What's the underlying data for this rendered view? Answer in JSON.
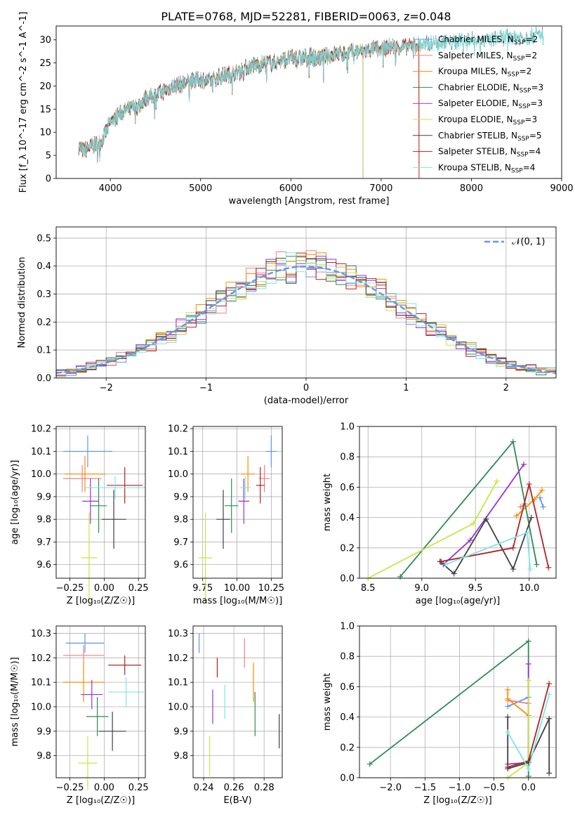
{
  "figure_title": "PLATE=0768, MJD=52281, FIBERID=0063, z=0.048",
  "colors": {
    "Chabrier MILES": "#6495ed",
    "Salpeter MILES": "#f08080",
    "Kroupa MILES": "#ff8c00",
    "Chabrier ELODIE": "#2e8b57",
    "Salpeter ELODIE": "#9932cc",
    "Kroupa ELODIE": "#c8e645",
    "Chabrier STELIB": "#404040",
    "Salpeter STELIB": "#b22222",
    "Kroupa STELIB": "#7fe5e5"
  },
  "chart_data": [
    {
      "type": "line",
      "xlabel": "wavelength [Angstrom, rest frame]",
      "ylabel": "Flux [f_λ 10^-17 erg cm^-2 s^-1 A^-1]",
      "xlim": [
        3400,
        9000
      ],
      "ylim": [
        0,
        33
      ],
      "xticks": [
        4000,
        5000,
        6000,
        7000,
        8000,
        9000
      ],
      "yticks": [
        0,
        5,
        10,
        15,
        20,
        25,
        30
      ],
      "legend_position": "right",
      "legend": [
        {
          "name": "Chabrier MILES",
          "label": "Chabrier MILES, N",
          "sub": "SSP",
          "tail": "=2"
        },
        {
          "name": "Salpeter MILES",
          "label": "Salpeter MILES, N",
          "sub": "SSP",
          "tail": "=2"
        },
        {
          "name": "Kroupa MILES",
          "label": "Kroupa MILES, N",
          "sub": "SSP",
          "tail": "=2"
        },
        {
          "name": "Chabrier ELODIE",
          "label": "Chabrier ELODIE, N",
          "sub": "SSP",
          "tail": "=3"
        },
        {
          "name": "Salpeter ELODIE",
          "label": "Salpeter ELODIE, N",
          "sub": "SSP",
          "tail": "=3"
        },
        {
          "name": "Kroupa ELODIE",
          "label": "Kroupa ELODIE, N",
          "sub": "SSP",
          "tail": "=3"
        },
        {
          "name": "Chabrier STELIB",
          "label": "Chabrier STELIB, N",
          "sub": "SSP",
          "tail": "=5"
        },
        {
          "name": "Salpeter STELIB",
          "label": "Salpeter STELIB, N",
          "sub": "SSP",
          "tail": "=4"
        },
        {
          "name": "Kroupa STELIB",
          "label": "Kroupa STELIB, N",
          "sub": "SSP",
          "tail": "=4"
        }
      ],
      "observed_spectrum": {
        "wavelength": [
          3650,
          3700,
          3800,
          3900,
          4000,
          4100,
          4200,
          4300,
          4400,
          4500,
          4600,
          4700,
          4800,
          4900,
          5000,
          5100,
          5200,
          5300,
          5400,
          5500,
          5600,
          5700,
          5800,
          5900,
          6000,
          6100,
          6200,
          6300,
          6400,
          6500,
          6600,
          6700,
          6800,
          6900,
          7000,
          7100,
          7200,
          7300,
          7400,
          7500,
          7600,
          7700,
          7800,
          7900,
          8000,
          8100,
          8200,
          8300,
          8400,
          8500,
          8600,
          8700,
          8800
        ],
        "flux": [
          7.0,
          6.0,
          7.0,
          8.0,
          12.0,
          14.0,
          15.0,
          15.5,
          17.5,
          18.0,
          19.0,
          20.0,
          20.5,
          21.0,
          21.5,
          21.0,
          22.0,
          22.5,
          23.0,
          24.0,
          24.5,
          25.0,
          25.0,
          25.5,
          26.0,
          26.0,
          26.5,
          26.0,
          26.5,
          27.0,
          27.0,
          27.5,
          27.5,
          28.0,
          28.0,
          28.5,
          28.5,
          28.5,
          29.0,
          29.0,
          29.5,
          29.5,
          29.5,
          30.0,
          30.0,
          30.0,
          30.0,
          30.5,
          30.5,
          30.5,
          30.5,
          31.0,
          31.0
        ]
      },
      "model_cutoffs": [
        {
          "name": "Chabrier MILES",
          "end_wavelength": 7420
        },
        {
          "name": "Salpeter MILES",
          "end_wavelength": 7420
        },
        {
          "name": "Kroupa MILES",
          "end_wavelength": 7420
        },
        {
          "name": "Salpeter STELIB",
          "end_wavelength": 7420
        },
        {
          "name": "Chabrier ELODIE",
          "end_wavelength": 6800
        },
        {
          "name": "Salpeter ELODIE",
          "end_wavelength": 6800
        },
        {
          "name": "Kroupa ELODIE",
          "end_wavelength": 6800
        }
      ]
    },
    {
      "type": "area",
      "xlabel": "(data-model)/error",
      "ylabel": "Normed distribution",
      "xlim": [
        -2.5,
        2.5
      ],
      "ylim": [
        0,
        0.54
      ],
      "xticks": [
        -2,
        -1,
        0,
        1,
        2
      ],
      "yticks": [
        0.0,
        0.1,
        0.2,
        0.3,
        0.4,
        0.5
      ],
      "grid": true,
      "legend_position": "top-right",
      "reference_curve": {
        "label": "𝒩(0, 1)",
        "mean": 0,
        "sigma": 1
      },
      "bin_width": 0.1
    },
    {
      "type": "scatter",
      "xlabel": "Z [log₁₀(Z/Z☉)]",
      "ylabel": "age  [log₁₀(age/yr)]",
      "xlim": [
        -0.35,
        0.3
      ],
      "ylim": [
        9.54,
        10.21
      ],
      "xticks": [
        -0.25,
        0.0,
        0.25
      ],
      "yticks": [
        9.6,
        9.7,
        9.8,
        9.9,
        10.0,
        10.1,
        10.2
      ],
      "grid": true,
      "points": [
        {
          "name": "Chabrier MILES",
          "x": -0.12,
          "y": 10.1,
          "xerr": 0.18,
          "yerr": 0.07
        },
        {
          "name": "Salpeter MILES",
          "x": -0.16,
          "y": 9.98,
          "xerr": 0.14,
          "yerr": 0.06
        },
        {
          "name": "Kroupa MILES",
          "x": -0.14,
          "y": 10.0,
          "xerr": 0.15,
          "yerr": 0.08
        },
        {
          "name": "Chabrier ELODIE",
          "x": -0.04,
          "y": 9.86,
          "xerr": 0.06,
          "yerr": 0.12
        },
        {
          "name": "Salpeter ELODIE",
          "x": -0.1,
          "y": 9.88,
          "xerr": 0.06,
          "yerr": 0.1
        },
        {
          "name": "Kroupa ELODIE",
          "x": -0.11,
          "y": 9.63,
          "xerr": 0.06,
          "yerr": 0.2
        },
        {
          "name": "Chabrier STELIB",
          "x": 0.07,
          "y": 9.8,
          "xerr": 0.09,
          "yerr": 0.13
        },
        {
          "name": "Salpeter STELIB",
          "x": 0.15,
          "y": 9.95,
          "xerr": 0.13,
          "yerr": 0.08
        },
        {
          "name": "Kroupa STELIB",
          "x": 0.08,
          "y": 9.94,
          "xerr": 0.22,
          "yerr": 0.05
        }
      ]
    },
    {
      "type": "scatter",
      "xlabel": "mass [log₁₀(M/M☉)]",
      "ylabel": "",
      "xlim": [
        9.68,
        10.33
      ],
      "ylim": [
        9.54,
        10.21
      ],
      "xticks": [
        9.75,
        10.0,
        10.25
      ],
      "yticks": [
        9.6,
        9.7,
        9.8,
        9.9,
        10.0,
        10.1,
        10.2
      ],
      "grid": true,
      "points": [
        {
          "name": "Chabrier MILES",
          "x": 10.25,
          "y": 10.1,
          "xerr": 0.04,
          "yerr": 0.07
        },
        {
          "name": "Salpeter MILES",
          "x": 10.2,
          "y": 9.98,
          "xerr": 0.04,
          "yerr": 0.06
        },
        {
          "name": "Kroupa MILES",
          "x": 10.08,
          "y": 10.0,
          "xerr": 0.05,
          "yerr": 0.08
        },
        {
          "name": "Chabrier ELODIE",
          "x": 9.96,
          "y": 9.86,
          "xerr": 0.05,
          "yerr": 0.12
        },
        {
          "name": "Salpeter ELODIE",
          "x": 10.05,
          "y": 9.88,
          "xerr": 0.04,
          "yerr": 0.1
        },
        {
          "name": "Kroupa ELODIE",
          "x": 9.77,
          "y": 9.63,
          "xerr": 0.05,
          "yerr": 0.2
        },
        {
          "name": "Chabrier STELIB",
          "x": 9.9,
          "y": 9.8,
          "xerr": 0.05,
          "yerr": 0.13
        },
        {
          "name": "Salpeter STELIB",
          "x": 10.17,
          "y": 9.95,
          "xerr": 0.03,
          "yerr": 0.08
        },
        {
          "name": "Kroupa STELIB",
          "x": 10.06,
          "y": 9.94,
          "xerr": 0.04,
          "yerr": 0.05
        }
      ]
    },
    {
      "type": "line",
      "xlabel": "age  [log₁₀(age/yr)]",
      "ylabel": "mass weight",
      "xlim": [
        8.42,
        10.25
      ],
      "ylim": [
        0,
        1
      ],
      "xticks": [
        8.5,
        9.0,
        9.5,
        10.0
      ],
      "yticks": [
        0.0,
        0.2,
        0.4,
        0.6,
        0.8,
        1.0
      ],
      "grid": true,
      "series": [
        {
          "name": "Chabrier MILES",
          "x": [
            10.1,
            10.13
          ],
          "y": [
            0.53,
            0.47
          ]
        },
        {
          "name": "Salpeter MILES",
          "x": [
            9.92,
            9.96
          ],
          "y": [
            0.47,
            0.49
          ]
        },
        {
          "name": "Kroupa MILES",
          "x": [
            9.88,
            10.05,
            10.12
          ],
          "y": [
            0.41,
            0.52,
            0.58
          ]
        },
        {
          "name": "Chabrier ELODIE",
          "x": [
            8.8,
            9.85,
            10.07
          ],
          "y": [
            0.01,
            0.9,
            0.09
          ]
        },
        {
          "name": "Salpeter ELODIE",
          "x": [
            9.2,
            9.45,
            9.95
          ],
          "y": [
            0.09,
            0.25,
            0.75
          ]
        },
        {
          "name": "Kroupa ELODIE",
          "x": [
            8.5,
            9.48,
            9.7
          ],
          "y": [
            0.0,
            0.36,
            0.64
          ]
        },
        {
          "name": "Chabrier STELIB",
          "x": [
            9.17,
            9.3,
            9.6,
            9.85,
            10.02
          ],
          "y": [
            0.11,
            0.03,
            0.39,
            0.06,
            0.4
          ]
        },
        {
          "name": "Salpeter STELIB",
          "x": [
            9.18,
            9.85,
            10.0,
            10.18
          ],
          "y": [
            0.11,
            0.2,
            0.62,
            0.07
          ]
        },
        {
          "name": "Kroupa STELIB",
          "x": [
            9.22,
            9.98,
            10.01
          ],
          "y": [
            0.09,
            0.3,
            0.06
          ]
        }
      ]
    },
    {
      "type": "scatter",
      "xlabel": "Z [log₁₀(Z/Z☉)]",
      "ylabel": "mass [log₁₀(M/M☉)]",
      "xlim": [
        -0.35,
        0.3
      ],
      "ylim": [
        9.71,
        10.33
      ],
      "xticks": [
        -0.25,
        0.0,
        0.25
      ],
      "yticks": [
        9.8,
        9.9,
        10.0,
        10.1,
        10.2,
        10.3
      ],
      "grid": true,
      "points": [
        {
          "name": "Chabrier MILES",
          "x": -0.14,
          "y": 10.26,
          "xerr": 0.14,
          "yerr": 0.04
        },
        {
          "name": "Salpeter MILES",
          "x": -0.15,
          "y": 10.21,
          "xerr": 0.15,
          "yerr": 0.04
        },
        {
          "name": "Kroupa MILES",
          "x": -0.15,
          "y": 10.1,
          "xerr": 0.15,
          "yerr": 0.08
        },
        {
          "name": "Chabrier ELODIE",
          "x": -0.05,
          "y": 9.96,
          "xerr": 0.08,
          "yerr": 0.08
        },
        {
          "name": "Salpeter ELODIE",
          "x": -0.09,
          "y": 10.05,
          "xerr": 0.08,
          "yerr": 0.06
        },
        {
          "name": "Kroupa ELODIE",
          "x": -0.12,
          "y": 9.77,
          "xerr": 0.07,
          "yerr": 0.11
        },
        {
          "name": "Chabrier STELIB",
          "x": 0.06,
          "y": 9.9,
          "xerr": 0.1,
          "yerr": 0.08
        },
        {
          "name": "Salpeter STELIB",
          "x": 0.15,
          "y": 10.17,
          "xerr": 0.12,
          "yerr": 0.04
        },
        {
          "name": "Kroupa STELIB",
          "x": 0.16,
          "y": 10.06,
          "xerr": 0.13,
          "yerr": 0.06
        }
      ]
    },
    {
      "type": "scatter",
      "xlabel": "E(B-V)",
      "ylabel": "",
      "xlim": [
        0.233,
        0.292
      ],
      "ylim": [
        9.71,
        10.33
      ],
      "xticks": [
        0.24,
        0.26,
        0.28
      ],
      "yticks": [
        9.8,
        9.9,
        10.0,
        10.1,
        10.2,
        10.3
      ],
      "grid": true,
      "points": [
        {
          "name": "Chabrier MILES",
          "x": 0.237,
          "y": 10.26,
          "xerr": 0.0,
          "yerr": 0.04
        },
        {
          "name": "Salpeter MILES",
          "x": 0.267,
          "y": 10.22,
          "xerr": 0.0,
          "yerr": 0.06
        },
        {
          "name": "Kroupa MILES",
          "x": 0.273,
          "y": 10.1,
          "xerr": 0.0,
          "yerr": 0.08
        },
        {
          "name": "Chabrier ELODIE",
          "x": 0.274,
          "y": 9.97,
          "xerr": 0.0,
          "yerr": 0.09
        },
        {
          "name": "Salpeter ELODIE",
          "x": 0.246,
          "y": 10.0,
          "xerr": 0.0,
          "yerr": 0.07
        },
        {
          "name": "Kroupa ELODIE",
          "x": 0.244,
          "y": 9.8,
          "xerr": 0.0,
          "yerr": 0.08
        },
        {
          "name": "Chabrier STELIB",
          "x": 0.29,
          "y": 9.9,
          "xerr": 0.0,
          "yerr": 0.07
        },
        {
          "name": "Salpeter STELIB",
          "x": 0.249,
          "y": 10.16,
          "xerr": 0.0,
          "yerr": 0.04
        },
        {
          "name": "Kroupa STELIB",
          "x": 0.254,
          "y": 10.02,
          "xerr": 0.0,
          "yerr": 0.07
        }
      ]
    },
    {
      "type": "line",
      "xlabel": "Z [log₁₀(Z/Z☉)]",
      "ylabel": "mass weight",
      "xlim": [
        -2.45,
        0.4
      ],
      "ylim": [
        0,
        1
      ],
      "xticks": [
        -2.0,
        -1.5,
        -1.0,
        -0.5,
        0.0
      ],
      "yticks": [
        0.0,
        0.2,
        0.4,
        0.6,
        0.8,
        1.0
      ],
      "grid": true,
      "series": [
        {
          "name": "Chabrier MILES",
          "x": [
            -0.3,
            0.0
          ],
          "y": [
            0.47,
            0.53
          ]
        },
        {
          "name": "Salpeter MILES",
          "x": [
            -0.3,
            0.0
          ],
          "y": [
            0.51,
            0.49
          ]
        },
        {
          "name": "Kroupa MILES",
          "x": [
            -0.3,
            -0.3,
            0.0
          ],
          "y": [
            0.58,
            0.52,
            0.41
          ]
        },
        {
          "name": "Chabrier ELODIE",
          "x": [
            -2.3,
            0.0,
            0.0
          ],
          "y": [
            0.09,
            0.9,
            0.01
          ]
        },
        {
          "name": "Salpeter ELODIE",
          "x": [
            -0.3,
            0.0,
            0.0
          ],
          "y": [
            0.09,
            0.1,
            0.75
          ]
        },
        {
          "name": "Kroupa ELODIE",
          "x": [
            -0.3,
            0.0,
            0.0
          ],
          "y": [
            0.0,
            0.1,
            0.64
          ]
        },
        {
          "name": "Chabrier STELIB",
          "x": [
            -0.3,
            -0.3,
            0.0,
            0.3,
            0.3
          ],
          "y": [
            0.4,
            0.06,
            0.1,
            0.39,
            0.03
          ]
        },
        {
          "name": "Salpeter STELIB",
          "x": [
            -0.3,
            0.0,
            0.3
          ],
          "y": [
            0.07,
            0.11,
            0.62
          ]
        },
        {
          "name": "Kroupa STELIB",
          "x": [
            -0.3,
            0.0,
            0.3
          ],
          "y": [
            0.3,
            0.06,
            0.55
          ]
        }
      ]
    }
  ]
}
